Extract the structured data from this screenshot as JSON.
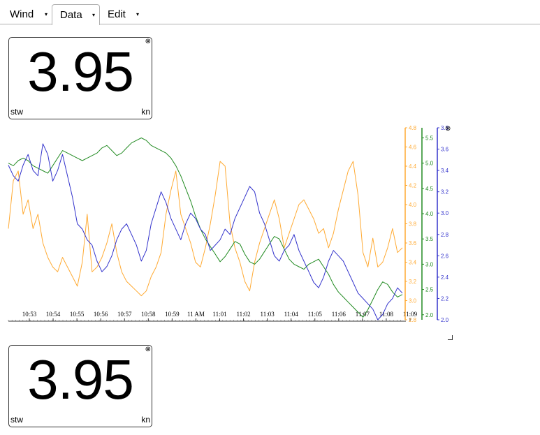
{
  "menu": {
    "tabs": [
      {
        "label": "Wind",
        "active": false
      },
      {
        "label": "Data",
        "active": true
      },
      {
        "label": "Edit",
        "active": false
      }
    ],
    "caret": "▾"
  },
  "gauges": [
    {
      "value": "3.95",
      "name": "stw",
      "unit": "kn"
    },
    {
      "value": "3.95",
      "name": "stw",
      "unit": "kn"
    }
  ],
  "close_glyph": "⊗",
  "colors": {
    "orange": "#ffaa33",
    "green": "#228b22",
    "blue": "#3333cc",
    "axis": "#333333"
  },
  "chart_data": {
    "type": "line",
    "x_ticks": [
      "10:53",
      "10:54",
      "10:55",
      "10:56",
      "10:57",
      "10:58",
      "10:59",
      "11 AM",
      "11:01",
      "11:02",
      "11:03",
      "11:04",
      "11:05",
      "11:06",
      "11:07",
      "11:08",
      "11:09"
    ],
    "axes": [
      {
        "color": "#ffaa33",
        "ticks": [
          "4.8",
          "4.6",
          "4.4",
          "4.2",
          "4.0",
          "3.8",
          "3.6",
          "3.4",
          "3.2",
          "3.0",
          "2.8"
        ],
        "ylim": [
          2.8,
          4.8
        ]
      },
      {
        "color": "#228b22",
        "ticks": [
          "5.5",
          "5.0",
          "4.5",
          "4.0",
          "3.5",
          "3.0",
          "2.5",
          "2.0"
        ],
        "ylim": [
          1.9,
          5.7
        ]
      },
      {
        "color": "#3333cc",
        "ticks": [
          "3.8",
          "3.6",
          "3.4",
          "3.2",
          "3.0",
          "2.8",
          "2.6",
          "2.4",
          "2.2",
          "2.0"
        ],
        "ylim": [
          2.0,
          3.8
        ]
      }
    ],
    "series": [
      {
        "color": "#ffaa33",
        "axis": 0,
        "values": [
          3.75,
          4.25,
          4.35,
          3.9,
          4.05,
          3.75,
          3.9,
          3.6,
          3.45,
          3.35,
          3.3,
          3.45,
          3.35,
          3.25,
          3.15,
          3.4,
          3.9,
          3.3,
          3.35,
          3.45,
          3.6,
          3.8,
          3.5,
          3.3,
          3.2,
          3.15,
          3.1,
          3.05,
          3.1,
          3.25,
          3.35,
          3.5,
          3.9,
          4.15,
          4.35,
          3.9,
          3.75,
          3.6,
          3.4,
          3.35,
          3.55,
          3.8,
          4.1,
          4.45,
          4.4,
          3.8,
          3.55,
          3.4,
          3.2,
          3.1,
          3.4,
          3.6,
          3.75,
          3.9,
          4.05,
          3.85,
          3.55,
          3.7,
          3.85,
          4.0,
          4.05,
          3.95,
          3.85,
          3.7,
          3.75,
          3.55,
          3.7,
          3.95,
          4.15,
          4.35,
          4.45,
          4.1,
          3.5,
          3.35,
          3.65,
          3.35,
          3.4,
          3.55,
          3.75,
          3.5,
          3.55
        ]
      },
      {
        "color": "#228b22",
        "axis": 1,
        "values": [
          5.0,
          4.95,
          5.05,
          5.1,
          5.05,
          4.95,
          4.9,
          4.85,
          4.8,
          4.95,
          5.1,
          5.25,
          5.2,
          5.15,
          5.1,
          5.05,
          5.1,
          5.15,
          5.2,
          5.3,
          5.35,
          5.25,
          5.15,
          5.2,
          5.3,
          5.4,
          5.45,
          5.5,
          5.45,
          5.35,
          5.3,
          5.25,
          5.2,
          5.1,
          4.95,
          4.75,
          4.5,
          4.25,
          3.95,
          3.7,
          3.5,
          3.35,
          3.2,
          3.05,
          3.15,
          3.3,
          3.45,
          3.4,
          3.2,
          3.05,
          3.0,
          3.1,
          3.25,
          3.4,
          3.55,
          3.5,
          3.3,
          3.1,
          3.0,
          2.95,
          2.9,
          3.0,
          3.05,
          3.1,
          2.95,
          2.8,
          2.6,
          2.45,
          2.35,
          2.25,
          2.15,
          2.05,
          1.95,
          2.1,
          2.3,
          2.5,
          2.65,
          2.6,
          2.45,
          2.35,
          2.4
        ]
      },
      {
        "color": "#3333cc",
        "axis": 2,
        "values": [
          3.45,
          3.35,
          3.3,
          3.45,
          3.55,
          3.4,
          3.35,
          3.65,
          3.55,
          3.3,
          3.4,
          3.55,
          3.35,
          3.15,
          2.9,
          2.85,
          2.75,
          2.7,
          2.55,
          2.45,
          2.5,
          2.6,
          2.75,
          2.85,
          2.9,
          2.8,
          2.7,
          2.55,
          2.65,
          2.9,
          3.05,
          3.2,
          3.1,
          2.95,
          2.85,
          2.75,
          2.9,
          3.0,
          2.95,
          2.85,
          2.8,
          2.65,
          2.7,
          2.75,
          2.85,
          2.8,
          2.95,
          3.05,
          3.15,
          3.25,
          3.2,
          3.0,
          2.9,
          2.75,
          2.6,
          2.55,
          2.65,
          2.7,
          2.8,
          2.65,
          2.55,
          2.45,
          2.35,
          2.3,
          2.4,
          2.55,
          2.65,
          2.6,
          2.55,
          2.45,
          2.35,
          2.25,
          2.2,
          2.15,
          2.1,
          2.0,
          2.05,
          2.15,
          2.2,
          2.3,
          2.25
        ]
      }
    ]
  }
}
